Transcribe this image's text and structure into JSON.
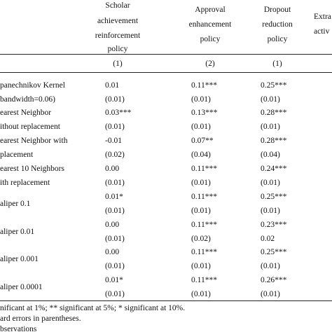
{
  "header": {
    "columns": [
      [
        "Scholar",
        "achievement",
        "reinforcement",
        "policy"
      ],
      [
        "Approval",
        "enhancement",
        "policy"
      ],
      [
        "Dropout",
        "reduction",
        "policy"
      ],
      [
        "Extra",
        "activ"
      ]
    ],
    "numbers": [
      "(1)",
      "(2)",
      "(1)"
    ]
  },
  "rows": [
    {
      "label": [
        "panechnikov Kernel",
        "bandwidth=0.06)"
      ],
      "estimates": [
        "0.01",
        "0.11***",
        "0.25***"
      ],
      "errors": [
        "(0.01)",
        "(0.01)",
        "(0.01)"
      ]
    },
    {
      "label": [
        "earest Neighbor",
        "ithout replacement"
      ],
      "estimates": [
        "0.03***",
        "0.13***",
        "0.28***"
      ],
      "errors": [
        "(0.01)",
        "(0.01)",
        "(0.01)"
      ]
    },
    {
      "label": [
        "earest Neighbor with",
        "placement"
      ],
      "estimates": [
        "-0.01",
        "0.07**",
        "0.28***"
      ],
      "errors": [
        "(0.02)",
        "(0.04)",
        "(0.04)"
      ]
    },
    {
      "label": [
        "earest 10 Neighbors",
        "ith replacement"
      ],
      "estimates": [
        "0.00",
        "0.11***",
        "0.24***"
      ],
      "errors": [
        "(0.01)",
        "(0.01)",
        "(0.01)"
      ]
    },
    {
      "label": [
        "aliper 0.1"
      ],
      "estimates": [
        "0.01*",
        "0.11***",
        "0.25***"
      ],
      "errors": [
        "(0.01)",
        "(0.01)",
        "(0.01)"
      ]
    },
    {
      "label": [
        "aliper 0.01"
      ],
      "estimates": [
        "0.00",
        "0.11***",
        "0.23***"
      ],
      "errors": [
        "(0.01)",
        "(0.02)",
        "0.02"
      ]
    },
    {
      "label": [
        "aliper 0.001"
      ],
      "estimates": [
        "0.00",
        "0.11***",
        "0.25***"
      ],
      "errors": [
        "(0.01)",
        "(0.01)",
        "(0.01)"
      ]
    },
    {
      "label": [
        "aliper 0.0001"
      ],
      "estimates": [
        "0.01*",
        "0.11***",
        "0.26***"
      ],
      "errors": [
        "(0.01)",
        "(0.01)",
        "(0.01)"
      ]
    }
  ],
  "notes": [
    "nificant at 1%; ** significant at 5%; * significant at 10%.",
    "ard errors in parentheses.",
    "bservations"
  ]
}
